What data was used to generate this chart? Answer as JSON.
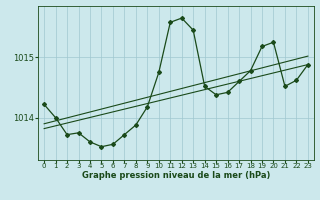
{
  "xlabel": "Graphe pression niveau de la mer (hPa)",
  "bg_color": "#cce8ec",
  "grid_color": "#a0c8d0",
  "line_color": "#1a4a1a",
  "x_ticks": [
    0,
    1,
    2,
    3,
    4,
    5,
    6,
    7,
    8,
    9,
    10,
    11,
    12,
    13,
    14,
    15,
    16,
    17,
    18,
    19,
    20,
    21,
    22,
    23
  ],
  "y_ticks": [
    1014,
    1015
  ],
  "ylim": [
    1013.3,
    1015.85
  ],
  "xlim": [
    -0.5,
    23.5
  ],
  "main_data": [
    [
      0,
      1014.22
    ],
    [
      1,
      1014.0
    ],
    [
      2,
      1013.72
    ],
    [
      3,
      1013.75
    ],
    [
      4,
      1013.6
    ],
    [
      5,
      1013.52
    ],
    [
      6,
      1013.56
    ],
    [
      7,
      1013.72
    ],
    [
      8,
      1013.88
    ],
    [
      9,
      1014.18
    ],
    [
      10,
      1014.75
    ],
    [
      11,
      1015.58
    ],
    [
      12,
      1015.65
    ],
    [
      13,
      1015.45
    ],
    [
      14,
      1014.52
    ],
    [
      15,
      1014.38
    ],
    [
      16,
      1014.42
    ],
    [
      17,
      1014.6
    ],
    [
      18,
      1014.78
    ],
    [
      19,
      1015.18
    ],
    [
      20,
      1015.25
    ],
    [
      21,
      1014.52
    ],
    [
      22,
      1014.62
    ],
    [
      23,
      1014.88
    ]
  ],
  "trend_data": [
    [
      0,
      1013.82
    ],
    [
      23,
      1014.88
    ]
  ],
  "trend2_data": [
    [
      0,
      1013.9
    ],
    [
      23,
      1015.02
    ]
  ]
}
